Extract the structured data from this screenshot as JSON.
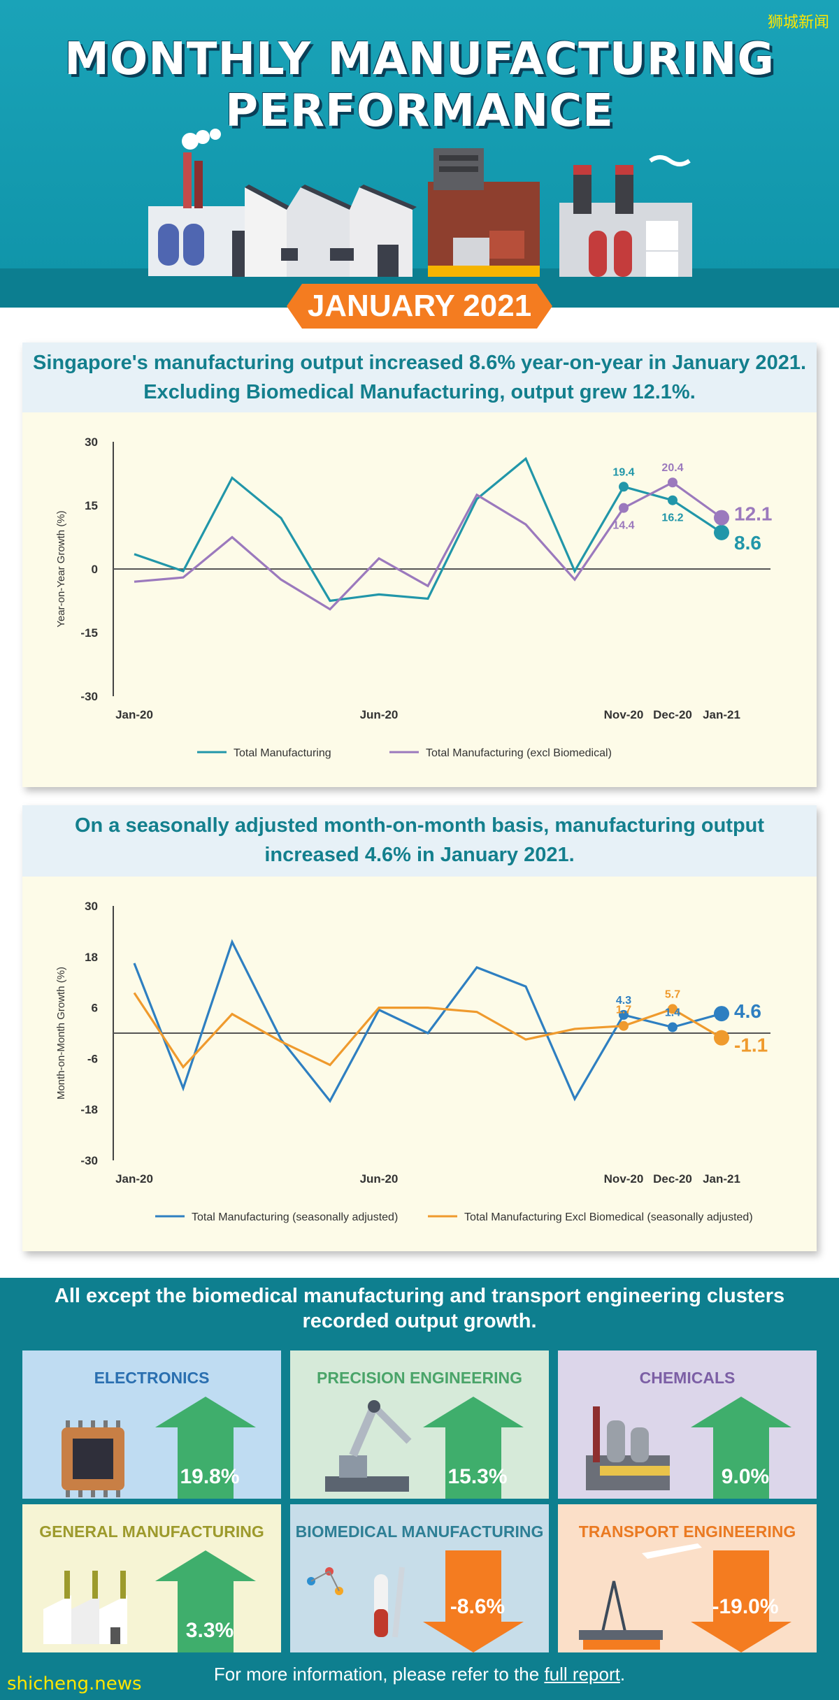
{
  "watermark_top": "狮城新闻",
  "watermark_bottom": "shicheng.news",
  "title_line1": "MONTHLY MANUFACTURING",
  "title_line2": "PERFORMANCE",
  "month_banner": "JANUARY 2021",
  "chart1_heading_line1": "Singapore's manufacturing output increased 8.6% year-on-year in January 2021.",
  "chart1_heading_line2": "Excluding Biomedical Manufacturing, output grew 12.1%.",
  "chart2_heading_line1": "On a seasonally adjusted month-on-month basis, manufacturing output",
  "chart2_heading_line2": "increased 4.6% in January 2021.",
  "clusters_heading_line1": "All except the biomedical manufacturing and transport engineering clusters",
  "clusters_heading_line2": "recorded output growth.",
  "footer": {
    "before": "For more information, please refer to the ",
    "link": "full report",
    "after": "."
  },
  "colors": {
    "teal": "#2196a9",
    "purple": "#9b79bd",
    "blue": "#2e7fc1",
    "orange": "#ef9a2d",
    "up_green": "#3fae6c",
    "down_orange": "#f47c20"
  },
  "clusters": [
    {
      "name": "ELECTRONICS",
      "value": "19.8%",
      "direction": "up",
      "bg": "#bfdcf2",
      "name_color": "#2a6fb0",
      "icon": "microchip-icon"
    },
    {
      "name": "PRECISION ENGINEERING",
      "value": "15.3%",
      "direction": "up",
      "bg": "#d6ead9",
      "name_color": "#4aa469",
      "icon": "robot-arm-icon"
    },
    {
      "name": "CHEMICALS",
      "value": "9.0%",
      "direction": "up",
      "bg": "#dcd6ea",
      "name_color": "#7c5fa5",
      "icon": "chemical-plant-icon"
    },
    {
      "name": "GENERAL MANUFACTURING",
      "value": "3.3%",
      "direction": "up",
      "bg": "#f6f4d4",
      "name_color": "#9d9a2c",
      "icon": "factory-icon"
    },
    {
      "name": "BIOMEDICAL MANUFACTURING",
      "value": "-8.6%",
      "direction": "down",
      "bg": "#c7dde9",
      "name_color": "#2e7f95",
      "icon": "biomedical-icon"
    },
    {
      "name": "TRANSPORT ENGINEERING",
      "value": "-19.0%",
      "direction": "down",
      "bg": "#fbdfc8",
      "name_color": "#ea7a22",
      "icon": "oil-rig-icon"
    }
  ],
  "chart_data": [
    {
      "type": "line",
      "ylabel": "Year-on-Year Growth (%)",
      "ylim": [
        -30,
        30
      ],
      "yticks": [
        30,
        15,
        0,
        -15,
        -30
      ],
      "x": [
        "Jan-20",
        "Feb-20",
        "Mar-20",
        "Apr-20",
        "May-20",
        "Jun-20",
        "Jul-20",
        "Aug-20",
        "Sep-20",
        "Oct-20",
        "Nov-20",
        "Dec-20",
        "Jan-21"
      ],
      "xtick_labels": [
        {
          "i": 0,
          "label": "Jan-20"
        },
        {
          "i": 5,
          "label": "Jun-20"
        },
        {
          "i": 10,
          "label": "Nov-20"
        },
        {
          "i": 11,
          "label": "Dec-20"
        },
        {
          "i": 12,
          "label": "Jan-21"
        }
      ],
      "series": [
        {
          "name": "Total Manufacturing",
          "color": "#2196a9",
          "values": [
            3.5,
            -0.5,
            21.5,
            12.0,
            -7.5,
            -6.0,
            -7.0,
            16.5,
            26.0,
            -0.5,
            19.4,
            16.2,
            8.6
          ]
        },
        {
          "name": "Total Manufacturing (excl Biomedical)",
          "color": "#9b79bd",
          "values": [
            -3.0,
            -2.0,
            7.5,
            -2.5,
            -9.5,
            2.5,
            -4.0,
            17.5,
            10.5,
            -2.5,
            14.4,
            20.4,
            12.1
          ]
        }
      ],
      "labels": [
        {
          "series": 0,
          "i": 10,
          "text": "19.4"
        },
        {
          "series": 0,
          "i": 11,
          "text": "16.2"
        },
        {
          "series": 1,
          "i": 10,
          "text": "14.4"
        },
        {
          "series": 1,
          "i": 11,
          "text": "20.4"
        }
      ],
      "end_labels": [
        {
          "series": 1,
          "text": "12.1"
        },
        {
          "series": 0,
          "text": "8.6"
        }
      ]
    },
    {
      "type": "line",
      "ylabel": "Month-on-Month Growth (%)",
      "ylim": [
        -30,
        30
      ],
      "yticks": [
        30,
        18,
        6,
        -6,
        -18,
        -30
      ],
      "x": [
        "Jan-20",
        "Feb-20",
        "Mar-20",
        "Apr-20",
        "May-20",
        "Jun-20",
        "Jul-20",
        "Aug-20",
        "Sep-20",
        "Oct-20",
        "Nov-20",
        "Dec-20",
        "Jan-21"
      ],
      "xtick_labels": [
        {
          "i": 0,
          "label": "Jan-20"
        },
        {
          "i": 5,
          "label": "Jun-20"
        },
        {
          "i": 10,
          "label": "Nov-20"
        },
        {
          "i": 11,
          "label": "Dec-20"
        },
        {
          "i": 12,
          "label": "Jan-21"
        }
      ],
      "series": [
        {
          "name": "Total Manufacturing (seasonally adjusted)",
          "color": "#2e7fc1",
          "values": [
            16.5,
            -13.0,
            21.5,
            -1.5,
            -16.0,
            5.5,
            0.0,
            15.5,
            11.0,
            -15.5,
            4.3,
            1.4,
            4.6
          ]
        },
        {
          "name": "Total Manufacturing Excl Biomedical (seasonally adjusted)",
          "color": "#ef9a2d",
          "values": [
            9.5,
            -8.0,
            4.5,
            -2.0,
            -7.5,
            6.0,
            6.0,
            5.0,
            -1.5,
            1.0,
            1.7,
            5.7,
            -1.1
          ]
        }
      ],
      "labels": [
        {
          "series": 0,
          "i": 10,
          "text": "4.3"
        },
        {
          "series": 0,
          "i": 11,
          "text": "1.4"
        },
        {
          "series": 1,
          "i": 10,
          "text": "1.7"
        },
        {
          "series": 1,
          "i": 11,
          "text": "5.7"
        }
      ],
      "end_labels": [
        {
          "series": 0,
          "text": "4.6"
        },
        {
          "series": 1,
          "text": "-1.1"
        }
      ]
    }
  ]
}
